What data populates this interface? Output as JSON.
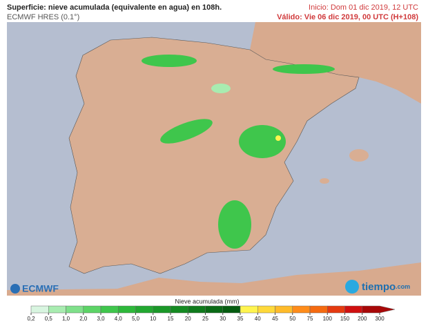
{
  "header": {
    "title": "Superficie: nieve acumulada (equivalente en agua) en 108h.",
    "model": "ECMWF HRES (0.1°)",
    "start": "Inicio: Dom 01 dic 2019, 12 UTC",
    "valid": "Válido: Vie 06 dic 2019, 00 UTC (H+108)"
  },
  "logos": {
    "left": "ECMWF",
    "right": "tiempo",
    "right_suffix": ".com"
  },
  "legend": {
    "title": "Nieve acumulada (mm)",
    "labels": [
      "0,2",
      "0,5",
      "1,0",
      "2,0",
      "3,0",
      "4,0",
      "5,0",
      "10",
      "15",
      "20",
      "25",
      "30",
      "35",
      "40",
      "45",
      "50",
      "75",
      "100",
      "150",
      "200",
      "300"
    ],
    "colors": [
      "#d8f5e0",
      "#a8ecb0",
      "#7fe08a",
      "#5cd466",
      "#3fc64c",
      "#2db83a",
      "#22a830",
      "#1a9828",
      "#148a22",
      "#0f7a1c",
      "#0a6a16",
      "#055c10",
      "#fff44f",
      "#ffd93a",
      "#ffbb2a",
      "#ff8c1a",
      "#f56a10",
      "#e53a10",
      "#d01010",
      "#a80808"
    ]
  }
}
